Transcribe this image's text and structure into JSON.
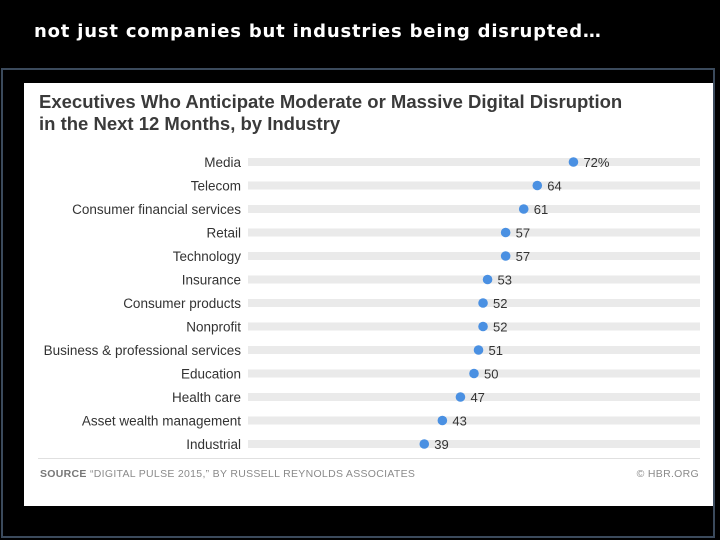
{
  "slide": {
    "title": "not just companies but industries being disrupted…"
  },
  "chart_data": {
    "type": "dot",
    "title_line1": "Executives Who Anticipate Moderate or Massive Digital Disruption",
    "title_line2": "in the Next 12 Months, by Industry",
    "unit_suffix": "%",
    "categories": [
      "Media",
      "Telecom",
      "Consumer financial services",
      "Retail",
      "Technology",
      "Insurance",
      "Consumer products",
      "Nonprofit",
      "Business & professional services",
      "Education",
      "Health care",
      "Asset wealth management",
      "Industrial"
    ],
    "values": [
      72,
      64,
      61,
      57,
      57,
      53,
      52,
      52,
      51,
      50,
      47,
      43,
      39
    ],
    "xlim": [
      0,
      100
    ],
    "accent_color": "#4a90e2",
    "track_color": "#eaeaea"
  },
  "footer": {
    "source_label": "SOURCE",
    "source_text": "“DIGITAL PULSE 2015,” BY RUSSELL REYNOLDS ASSOCIATES",
    "credit": "© HBR.ORG"
  }
}
